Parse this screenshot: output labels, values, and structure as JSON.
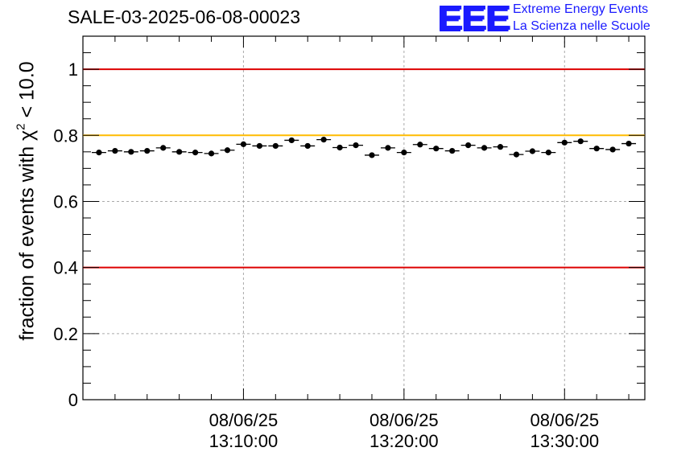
{
  "chart_data": {
    "type": "scatter",
    "title": "SALE-03-2025-06-08-00023",
    "ylabel_prefix": "fraction of events with ",
    "ylabel_chi": "χ",
    "ylabel_exp": "2",
    "ylabel_suffix": " < 10.0",
    "xlabel": "",
    "ylim": [
      0,
      1.1
    ],
    "xlim_minutes": [
      -1.0,
      34.0
    ],
    "x_ticks": [
      {
        "minute": 9.0,
        "date": "08/06/25",
        "time": "13:10:00"
      },
      {
        "minute": 19.0,
        "date": "08/06/25",
        "time": "13:20:00"
      },
      {
        "minute": 29.0,
        "date": "08/06/25",
        "time": "13:30:00"
      }
    ],
    "y_ticks": [
      {
        "value": 0,
        "label": "0"
      },
      {
        "value": 0.2,
        "label": "0.2"
      },
      {
        "value": 0.4,
        "label": "0.4"
      },
      {
        "value": 0.6,
        "label": "0.6"
      },
      {
        "value": 0.8,
        "label": "0.8"
      },
      {
        "value": 1.0,
        "label": "1"
      }
    ],
    "reference_lines": [
      {
        "value": 1.0,
        "color": "#dd0000"
      },
      {
        "value": 0.8,
        "color": "#ffbb00"
      },
      {
        "value": 0.4,
        "color": "#dd0000"
      }
    ],
    "x_minutes": [
      0,
      1,
      2,
      3,
      4,
      5,
      6,
      7,
      8,
      9,
      10,
      11,
      12,
      13,
      14,
      15,
      16,
      17,
      18,
      19,
      20,
      21,
      22,
      23,
      24,
      25,
      26,
      27,
      28,
      29,
      30,
      31,
      32,
      33
    ],
    "values": [
      0.748,
      0.753,
      0.75,
      0.753,
      0.762,
      0.75,
      0.748,
      0.745,
      0.755,
      0.773,
      0.768,
      0.768,
      0.785,
      0.768,
      0.787,
      0.763,
      0.77,
      0.74,
      0.762,
      0.748,
      0.772,
      0.76,
      0.753,
      0.77,
      0.762,
      0.765,
      0.742,
      0.752,
      0.748,
      0.778,
      0.782,
      0.76,
      0.757,
      0.775
    ],
    "bin_halfwidth_minutes": 0.45,
    "errors": 0.006,
    "grid": true
  },
  "logo": {
    "mark": "EEE",
    "line1": "Extreme Energy Events",
    "line2": "La Scienza nelle Scuole"
  }
}
